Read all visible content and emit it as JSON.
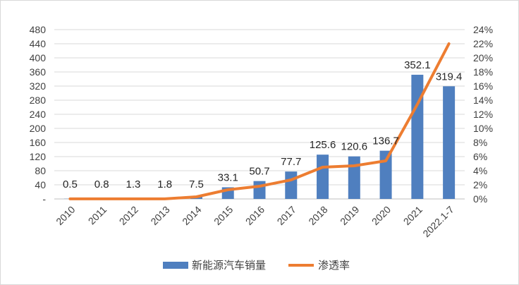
{
  "chart_data": {
    "type": "bar",
    "categories": [
      "2010",
      "2011",
      "2012",
      "2013",
      "2014",
      "2015",
      "2016",
      "2017",
      "2018",
      "2019",
      "2020",
      "2021",
      "2022.1-7"
    ],
    "series": [
      {
        "name": "新能源汽车销量",
        "type": "bar",
        "axis": "left",
        "color": "#4f7fbf",
        "values": [
          0.5,
          0.8,
          1.3,
          1.8,
          7.5,
          33.1,
          50.7,
          77.7,
          125.6,
          120.6,
          136.7,
          352.1,
          319.4
        ],
        "labels": [
          "0.5",
          "0.8",
          "1.3",
          "1.8",
          "7.5",
          "33.1",
          "50.7",
          "77.7",
          "125.6",
          "120.6",
          "136.7",
          "352.1",
          "319.4"
        ]
      },
      {
        "name": "渗透率",
        "type": "line",
        "axis": "right",
        "color": "#ed7d31",
        "values": [
          0.0001,
          0.0001,
          0.0001,
          0.0001,
          0.003,
          0.013,
          0.018,
          0.027,
          0.045,
          0.047,
          0.054,
          0.134,
          0.22
        ]
      }
    ],
    "left_axis": {
      "min": 0,
      "max": 480,
      "ticks": [
        "-",
        "40",
        "80",
        "120",
        "160",
        "200",
        "240",
        "280",
        "320",
        "360",
        "400",
        "440",
        "480"
      ]
    },
    "right_axis": {
      "min": 0,
      "max": 0.24,
      "ticks": [
        "0%",
        "2%",
        "4%",
        "6%",
        "8%",
        "10%",
        "12%",
        "14%",
        "16%",
        "18%",
        "20%",
        "22%",
        "24%"
      ]
    },
    "grid": true,
    "legend_position": "bottom"
  }
}
